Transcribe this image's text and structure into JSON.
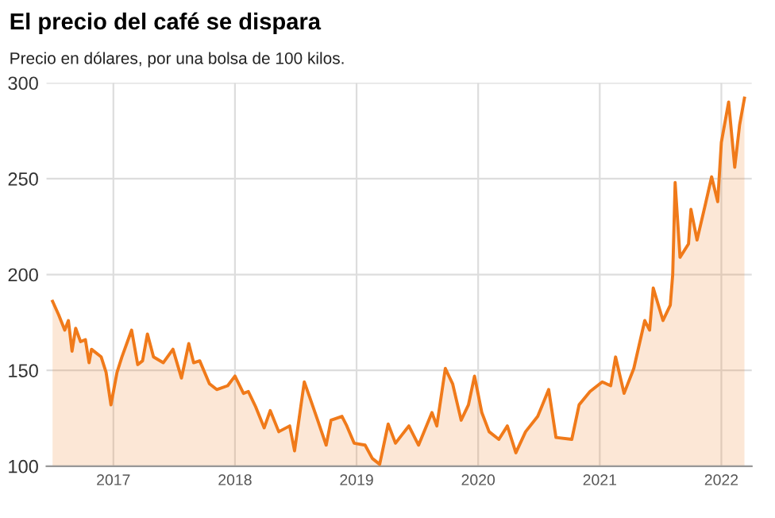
{
  "chart_data": {
    "type": "area",
    "title": "El precio del café se dispara",
    "subtitle": "Precio en dólares, por una bolsa de 100 kilos.",
    "series": [
      {
        "color": "#f07a1a",
        "x": [
          2016.5,
          2016.55,
          2016.6,
          2016.63,
          2016.66,
          2016.69,
          2016.73,
          2016.77,
          2016.8,
          2016.82,
          2016.9,
          2016.94,
          2016.98,
          2017.03,
          2017.07,
          2017.15,
          2017.2,
          2017.24,
          2017.28,
          2017.33,
          2017.41,
          2017.49,
          2017.56,
          2017.62,
          2017.66,
          2017.71,
          2017.79,
          2017.85,
          2017.94,
          2018.0,
          2018.07,
          2018.11,
          2018.17,
          2018.24,
          2018.29,
          2018.36,
          2018.45,
          2018.49,
          2018.57,
          2018.62,
          2018.68,
          2018.75,
          2018.79,
          2018.88,
          2018.92,
          2018.98,
          2019.07,
          2019.13,
          2019.19,
          2019.26,
          2019.32,
          2019.43,
          2019.51,
          2019.62,
          2019.66,
          2019.73,
          2019.79,
          2019.86,
          2019.92,
          2019.97,
          2020.03,
          2020.09,
          2020.17,
          2020.24,
          2020.31,
          2020.39,
          2020.49,
          2020.58,
          2020.64,
          2020.77,
          2020.83,
          2020.92,
          2021.02,
          2021.09,
          2021.13,
          2021.2,
          2021.28,
          2021.37,
          2021.41,
          2021.44,
          2021.52,
          2021.58,
          2021.6,
          2021.62,
          2021.66,
          2021.73,
          2021.75,
          2021.8,
          2021.87,
          2021.92,
          2021.97,
          2022.0,
          2022.06,
          2022.11,
          2022.15,
          2022.19
        ],
        "values": [
          186,
          179,
          171,
          176,
          160,
          172,
          165,
          166,
          154,
          161,
          157,
          149,
          132,
          149,
          157,
          171,
          153,
          155,
          169,
          157,
          154,
          161,
          146,
          164,
          154,
          155,
          143,
          140,
          142,
          147,
          138,
          139,
          131,
          120,
          129,
          118,
          121,
          108,
          144,
          135,
          124,
          111,
          124,
          126,
          121,
          112,
          111,
          104,
          101,
          122,
          112,
          121,
          111,
          128,
          121,
          151,
          143,
          124,
          132,
          147,
          128,
          118,
          114,
          121,
          107,
          118,
          126,
          140,
          115,
          114,
          132,
          139,
          144,
          142,
          157,
          138,
          151,
          176,
          171,
          193,
          176,
          184,
          200,
          248,
          209,
          216,
          234,
          218,
          237,
          251,
          238,
          269,
          290,
          256,
          278,
          292
        ]
      }
    ],
    "xlim": [
      2016.45,
      2022.25
    ],
    "xticks": [
      2017,
      2018,
      2019,
      2020,
      2021,
      2022
    ],
    "ylim": [
      100,
      300
    ],
    "yticks": [
      100,
      150,
      200,
      250,
      300
    ],
    "grid": true
  }
}
